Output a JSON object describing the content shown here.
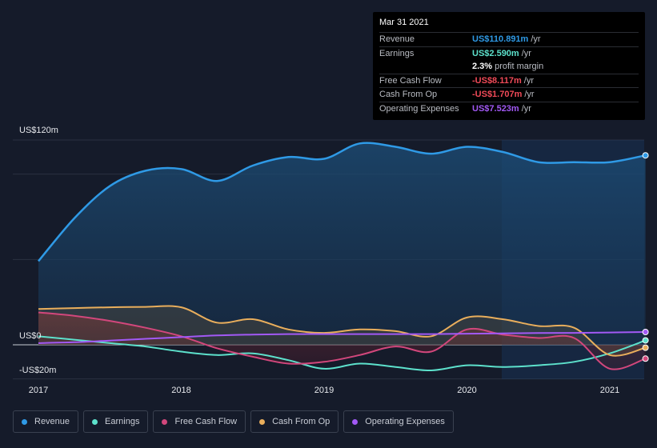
{
  "tooltip": {
    "date": "Mar 31 2021",
    "rows": [
      {
        "label": "Revenue",
        "value": "US$110.891m",
        "unit": "/yr",
        "color": "#2f9ae6"
      },
      {
        "label": "Earnings",
        "value": "US$2.590m",
        "unit": "/yr",
        "color": "#5de1cc"
      },
      {
        "label": "",
        "value": "2.3%",
        "unit": "profit margin",
        "color": "#ffffff"
      },
      {
        "label": "Free Cash Flow",
        "value": "-US$8.117m",
        "unit": "/yr",
        "color": "#f04a58"
      },
      {
        "label": "Cash From Op",
        "value": "-US$1.707m",
        "unit": "/yr",
        "color": "#f04a58"
      },
      {
        "label": "Operating Expenses",
        "value": "US$7.523m",
        "unit": "/yr",
        "color": "#a259f5"
      }
    ]
  },
  "legend": [
    {
      "label": "Revenue",
      "color": "#2f9ae6"
    },
    {
      "label": "Earnings",
      "color": "#5de1cc"
    },
    {
      "label": "Free Cash Flow",
      "color": "#d2477c"
    },
    {
      "label": "Cash From Op",
      "color": "#e9ae5c"
    },
    {
      "label": "Operating Expenses",
      "color": "#a259f5"
    }
  ],
  "chart_data": {
    "type": "line",
    "title": "",
    "xlabel": "",
    "ylabel": "",
    "y_axis_labels": [
      "US$120m",
      "US$0",
      "-US$20m"
    ],
    "x_tick_labels": [
      "2017",
      "2018",
      "2019",
      "2020",
      "2021"
    ],
    "x_ticks": [
      2017.0,
      2018.0,
      2019.0,
      2020.0,
      2021.0
    ],
    "xlim": [
      2016.82,
      2021.25
    ],
    "ylim": [
      -20,
      120
    ],
    "grid": true,
    "series": [
      {
        "name": "Revenue",
        "color": "#2f9ae6",
        "x": [
          2017.0,
          2017.25,
          2017.5,
          2017.75,
          2018.0,
          2018.25,
          2018.5,
          2018.75,
          2019.0,
          2019.25,
          2019.5,
          2019.75,
          2020.0,
          2020.25,
          2020.5,
          2020.75,
          2021.0,
          2021.25
        ],
        "values": [
          49,
          74,
          93,
          102,
          103,
          96,
          105,
          110,
          109,
          118,
          116,
          112,
          116,
          113,
          107,
          107,
          107,
          111
        ]
      },
      {
        "name": "Earnings",
        "color": "#5de1cc",
        "x": [
          2017.0,
          2017.25,
          2017.5,
          2017.75,
          2018.0,
          2018.25,
          2018.5,
          2018.75,
          2019.0,
          2019.25,
          2019.5,
          2019.75,
          2020.0,
          2020.25,
          2020.5,
          2020.75,
          2021.0,
          2021.25
        ],
        "values": [
          5,
          3,
          1,
          -1,
          -4,
          -6,
          -5,
          -9,
          -14,
          -11,
          -13,
          -15,
          -12,
          -13,
          -12,
          -10,
          -5,
          2.6
        ]
      },
      {
        "name": "Free Cash Flow",
        "color": "#d2477c",
        "x": [
          2017.0,
          2017.25,
          2017.5,
          2017.75,
          2018.0,
          2018.25,
          2018.5,
          2018.75,
          2019.0,
          2019.25,
          2019.5,
          2019.75,
          2020.0,
          2020.25,
          2020.5,
          2020.75,
          2021.0,
          2021.25
        ],
        "values": [
          19,
          17,
          14,
          10,
          5,
          -2,
          -7,
          -11,
          -10,
          -6,
          -1,
          -4,
          9,
          6,
          4,
          4,
          -14,
          -8.1
        ]
      },
      {
        "name": "Cash From Op",
        "color": "#e9ae5c",
        "x": [
          2017.0,
          2017.25,
          2017.5,
          2017.75,
          2018.0,
          2018.25,
          2018.5,
          2018.75,
          2019.0,
          2019.25,
          2019.5,
          2019.75,
          2020.0,
          2020.25,
          2020.5,
          2020.75,
          2021.0,
          2021.25
        ],
        "values": [
          21,
          21.5,
          22,
          22.2,
          22,
          13,
          15,
          9,
          7,
          9,
          8,
          5,
          16,
          15,
          11,
          10,
          -6,
          -1.7
        ]
      },
      {
        "name": "Operating Expenses",
        "color": "#a259f5",
        "x": [
          2017.0,
          2017.25,
          2017.5,
          2017.75,
          2018.0,
          2018.25,
          2018.5,
          2018.75,
          2019.0,
          2019.25,
          2019.5,
          2019.75,
          2020.0,
          2020.25,
          2020.5,
          2020.75,
          2021.0,
          2021.25
        ],
        "values": [
          1,
          1.5,
          2.5,
          3.5,
          4.5,
          5.5,
          6,
          6.3,
          6.3,
          6.3,
          6.3,
          6.3,
          6.5,
          6.7,
          6.9,
          7.0,
          7.2,
          7.5
        ]
      }
    ]
  }
}
